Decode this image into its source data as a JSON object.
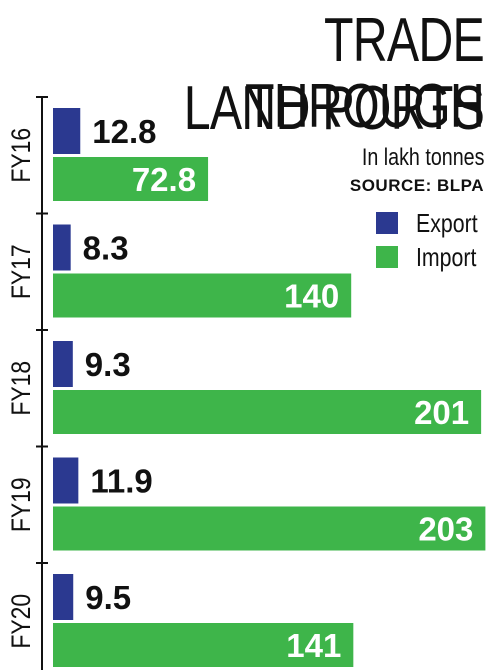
{
  "title_lines": [
    "TRADE THROUGH",
    "LAND PORTS"
  ],
  "subtitle": "In lakh tonnes",
  "source": "SOURCE: BLPA",
  "colors": {
    "export": "#2b3990",
    "import": "#3eb54a",
    "axis": "#111111"
  },
  "chart_data": {
    "type": "bar",
    "orientation": "horizontal",
    "title": "TRADE THROUGH LAND PORTS",
    "subtitle": "In lakh tonnes",
    "categories": [
      "FY16",
      "FY17",
      "FY18",
      "FY19",
      "FY20"
    ],
    "series": [
      {
        "name": "Export",
        "values": [
          12.8,
          8.3,
          9.3,
          11.9,
          9.5
        ]
      },
      {
        "name": "Import",
        "values": [
          72.8,
          140,
          201,
          203,
          141
        ]
      }
    ],
    "value_labels": {
      "Export": [
        "12.8",
        "8.3",
        "9.3",
        "11.9",
        "9.5"
      ],
      "Import": [
        "72.8",
        "140",
        "201",
        "203",
        "141"
      ]
    },
    "legend": {
      "position": "top-right",
      "entries": [
        "Export",
        "Import"
      ]
    },
    "grid": false
  }
}
